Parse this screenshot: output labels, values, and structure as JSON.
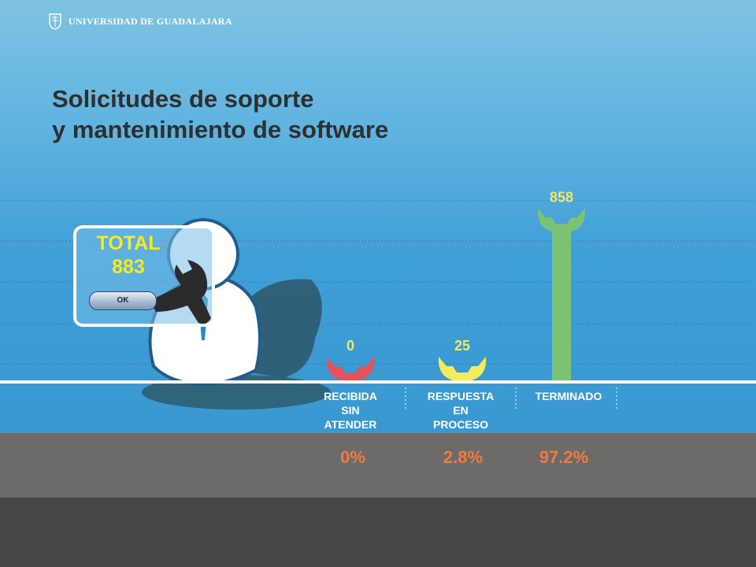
{
  "header": {
    "university": "Universidad de Guadalajara"
  },
  "title": {
    "line1": "Solicitudes de soporte",
    "line2": "y mantenimiento de software"
  },
  "total_card": {
    "label": "TOTAL",
    "value": "883",
    "ok_label": "OK"
  },
  "colors": {
    "recibida": "#e2545b",
    "respuesta": "#f3eb5c",
    "terminado": "#7cc274",
    "value_text": "#efe86a",
    "percent_text": "#f47a3c"
  },
  "chart_data": {
    "type": "bar",
    "categories": [
      "RECIBIDA\nSIN\nATENDER",
      "RESPUESTA\nEN\nPROCESO",
      "TERMINADO"
    ],
    "values": [
      0,
      25,
      858
    ],
    "value_labels": [
      "0",
      "25",
      "858"
    ],
    "percentages": [
      "0%",
      "2.8%",
      "97.2%"
    ],
    "title": "Solicitudes de soporte y mantenimiento de software",
    "ylim": [
      0,
      883
    ],
    "grid": true
  }
}
